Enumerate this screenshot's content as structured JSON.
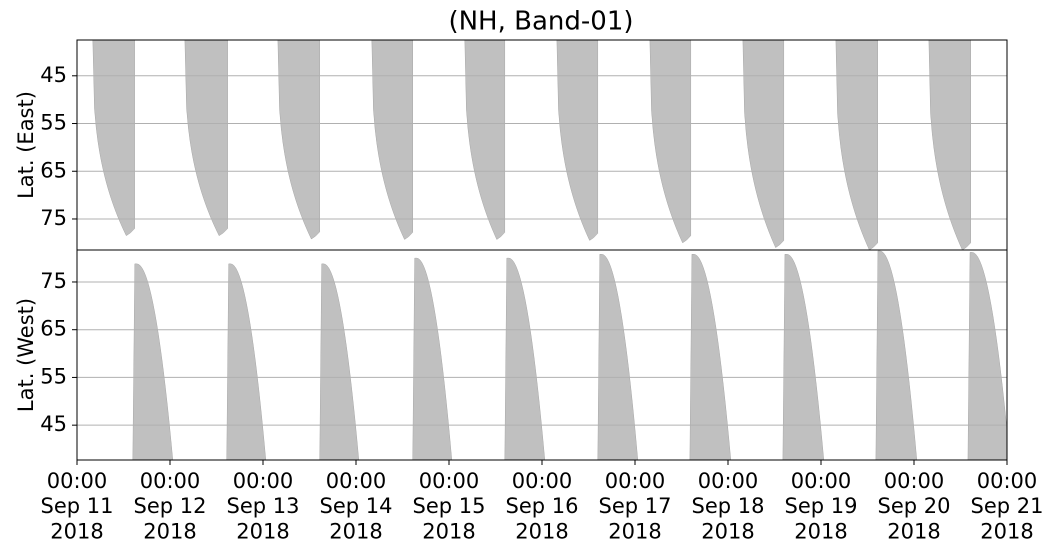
{
  "chart_data": {
    "type": "coverage",
    "title": "(NH, Band-01)",
    "color": "#c0c0c0",
    "grid": true,
    "xlim": [
      0,
      10
    ],
    "xticks": [
      {
        "value": 0,
        "label": "00:00\nSep 11\n2018"
      },
      {
        "value": 1,
        "label": "00:00\nSep 12\n2018"
      },
      {
        "value": 2,
        "label": "00:00\nSep 13\n2018"
      },
      {
        "value": 3,
        "label": "00:00\nSep 14\n2018"
      },
      {
        "value": 4,
        "label": "00:00\nSep 15\n2018"
      },
      {
        "value": 5,
        "label": "00:00\nSep 16\n2018"
      },
      {
        "value": 6,
        "label": "00:00\nSep 17\n2018"
      },
      {
        "value": 7,
        "label": "00:00\nSep 18\n2018"
      },
      {
        "value": 8,
        "label": "00:00\nSep 19\n2018"
      },
      {
        "value": 9,
        "label": "00:00\nSep 20\n2018"
      },
      {
        "value": 10,
        "label": "00:00\nSep 21\n2018"
      }
    ],
    "panels": [
      {
        "ylabel": "Lat. (East)",
        "shape": "descending",
        "ylim": [
          81.5,
          37.5
        ],
        "yticks": [
          45,
          55,
          65,
          75
        ],
        "swaths": [
          {
            "start": 0.17,
            "end": 0.62,
            "peak": 78.5
          },
          {
            "start": 1.16,
            "end": 1.62,
            "peak": 78.5
          },
          {
            "start": 2.16,
            "end": 2.61,
            "peak": 79.2
          },
          {
            "start": 3.17,
            "end": 3.61,
            "peak": 79.3
          },
          {
            "start": 4.17,
            "end": 4.6,
            "peak": 79.3
          },
          {
            "start": 5.16,
            "end": 5.6,
            "peak": 79.5
          },
          {
            "start": 6.16,
            "end": 6.6,
            "peak": 80
          },
          {
            "start": 7.16,
            "end": 7.6,
            "peak": 81
          },
          {
            "start": 8.16,
            "end": 8.61,
            "peak": 81.5
          },
          {
            "start": 9.16,
            "end": 9.61,
            "peak": 81.5
          }
        ]
      },
      {
        "ylabel": "Lat. (West)",
        "shape": "ascending",
        "ylim": [
          37.7,
          81.7
        ],
        "yticks": [
          45,
          55,
          65,
          75
        ],
        "swaths": [
          {
            "start": 0.6,
            "end": 1.03,
            "peak": 78.8
          },
          {
            "start": 1.61,
            "end": 2.03,
            "peak": 78.8
          },
          {
            "start": 2.61,
            "end": 3.03,
            "peak": 78.8
          },
          {
            "start": 3.61,
            "end": 4.03,
            "peak": 80
          },
          {
            "start": 4.6,
            "end": 5.03,
            "peak": 80
          },
          {
            "start": 5.6,
            "end": 6.03,
            "peak": 80.8
          },
          {
            "start": 6.59,
            "end": 7.03,
            "peak": 80.8
          },
          {
            "start": 7.59,
            "end": 8.03,
            "peak": 80.8
          },
          {
            "start": 8.59,
            "end": 9.03,
            "peak": 81.5
          },
          {
            "start": 9.58,
            "end": 10.03,
            "peak": 81.2
          }
        ]
      }
    ]
  }
}
